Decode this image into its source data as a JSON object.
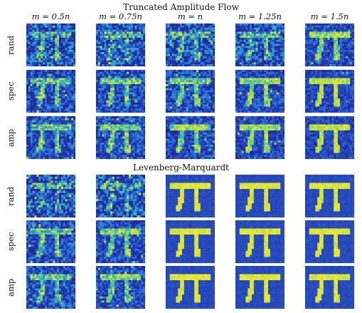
{
  "figure": {
    "sections": [
      {
        "title": "Truncated Amplitude Flow",
        "rows": [
          {
            "label": "rand",
            "quality": [
              0.15,
              0.18,
              0.2,
              0.25,
              0.55
            ]
          },
          {
            "label": "spec",
            "quality": [
              0.35,
              0.38,
              0.45,
              0.55,
              0.7
            ]
          },
          {
            "label": "amp",
            "quality": [
              0.38,
              0.42,
              0.5,
              0.6,
              0.72
            ]
          }
        ]
      },
      {
        "title": "Levenberg-Marquardt",
        "rows": [
          {
            "label": "rand",
            "quality": [
              0.12,
              0.15,
              0.85,
              0.92,
              0.95
            ]
          },
          {
            "label": "spec",
            "quality": [
              0.38,
              0.45,
              0.85,
              0.92,
              0.95
            ]
          },
          {
            "label": "amp",
            "quality": [
              0.38,
              0.45,
              0.85,
              0.92,
              0.95
            ]
          }
        ]
      }
    ],
    "columns": [
      "m = 0.5n",
      "m = 0.75n",
      "m = n",
      "m = 1.25n",
      "m = 1.5n"
    ]
  }
}
